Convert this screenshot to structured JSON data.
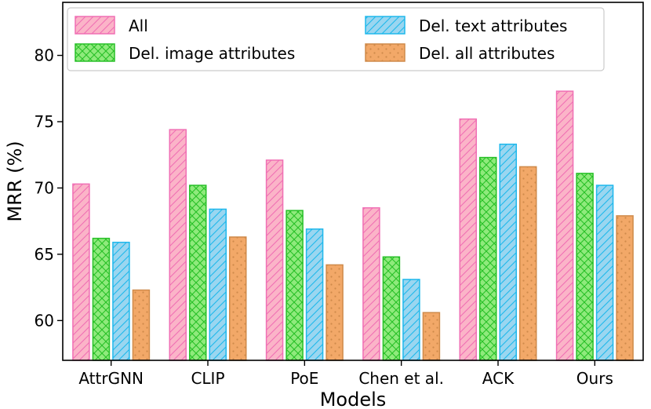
{
  "chart_data": {
    "type": "bar",
    "xlabel": "Models",
    "ylabel": "MRR (%)",
    "ylim": [
      57,
      84
    ],
    "yticks": [
      60,
      65,
      70,
      75,
      80
    ],
    "grid": false,
    "legend_placement": "top-left",
    "legend_columns": 2,
    "categories": [
      "AttrGNN",
      "CLIP",
      "PoE",
      "Chen et al.",
      "ACK",
      "Ours"
    ],
    "series": [
      {
        "name": "All",
        "values": [
          70.3,
          74.4,
          72.1,
          68.5,
          75.2,
          77.3
        ],
        "fill": "#fbb4c8",
        "stroke": "#f06fb4",
        "pattern": "diagonal"
      },
      {
        "name": "Del. image attributes",
        "values": [
          66.2,
          70.2,
          68.3,
          64.8,
          72.3,
          71.1
        ],
        "fill": "#8fea7c",
        "stroke": "#28c028",
        "pattern": "crosshatch"
      },
      {
        "name": "Del. text attributes",
        "values": [
          65.9,
          68.4,
          66.9,
          63.1,
          73.3,
          70.2
        ],
        "fill": "#9ad6f0",
        "stroke": "#1eb8ec",
        "pattern": "diagonal"
      },
      {
        "name": "Del. all attributes",
        "values": [
          62.3,
          66.3,
          64.2,
          60.6,
          71.6,
          67.9
        ],
        "fill": "#f2a868",
        "stroke": "#cf8a4a",
        "pattern": "dots"
      }
    ]
  }
}
